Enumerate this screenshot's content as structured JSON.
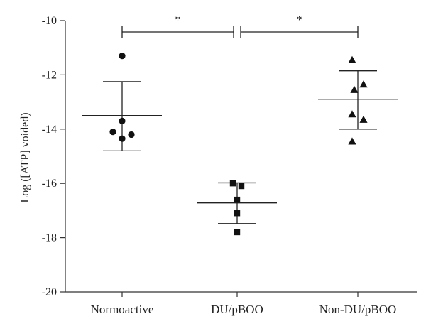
{
  "chart_data": {
    "type": "scatter",
    "ylabel": "Log ([ATP] voided)",
    "xlabel": "",
    "ylim": [
      -20,
      -10
    ],
    "yticks": [
      -10,
      -12,
      -14,
      -16,
      -18,
      -20
    ],
    "ytick_labels": [
      "-10",
      "-12",
      "-14",
      "-16",
      "-18",
      "-20"
    ],
    "grid": false,
    "categories": [
      "Normoactive",
      "DU/pBOO",
      "Non-DU/pBOO"
    ],
    "groups": [
      {
        "category": "Normoactive",
        "marker": "circle",
        "points": [
          -11.3,
          -13.7,
          -14.1,
          -14.2,
          -14.35
        ],
        "mean": -13.5,
        "err_upper": -12.25,
        "err_lower": -14.8
      },
      {
        "category": "DU/pBOO",
        "marker": "square",
        "points": [
          -16.0,
          -16.1,
          -16.6,
          -17.1,
          -17.8
        ],
        "mean": -16.72,
        "err_upper": -15.98,
        "err_lower": -17.48
      },
      {
        "category": "Non-DU/pBOO",
        "marker": "triangle",
        "points": [
          -11.45,
          -12.35,
          -12.55,
          -13.45,
          -13.65,
          -14.45
        ],
        "mean": -12.9,
        "err_upper": -11.85,
        "err_lower": -14.0
      }
    ],
    "significance": [
      {
        "from": "Normoactive",
        "to": "DU/pBOO",
        "label": "*"
      },
      {
        "from": "DU/pBOO",
        "to": "Non-DU/pBOO",
        "label": "*"
      }
    ],
    "colors": {
      "marker": "#111111",
      "axis": "#333333"
    }
  }
}
